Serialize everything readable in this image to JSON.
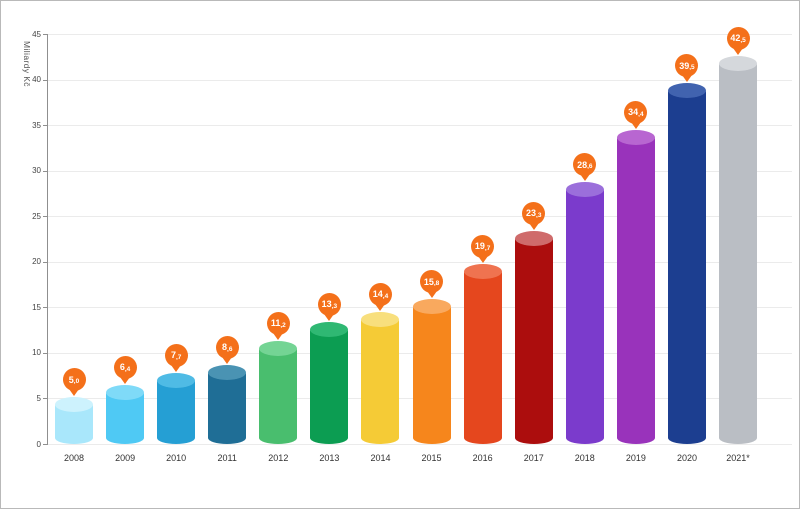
{
  "chart_data": {
    "type": "bar",
    "title": "",
    "ylabel": "Miliardy Kč",
    "xlabel": "",
    "ylim": [
      0,
      45
    ],
    "ytick_step": 5,
    "grid": true,
    "legend": "none",
    "categories": [
      "2008",
      "2009",
      "2010",
      "2011",
      "2012",
      "2013",
      "2014",
      "2015",
      "2016",
      "2017",
      "2018",
      "2019",
      "2020",
      "2021*"
    ],
    "values": [
      5.0,
      6.4,
      7.7,
      8.6,
      11.2,
      13.3,
      14.4,
      15.8,
      19.7,
      23.3,
      28.6,
      34.4,
      39.5,
      42.5
    ],
    "value_labels": [
      "5,0",
      "6,4",
      "7,7",
      "8,6",
      "11,2",
      "13,3",
      "14,4",
      "15,8",
      "19,7",
      "23,3",
      "28,6",
      "34,4",
      "39,5",
      "42,5"
    ],
    "bar_colors": [
      "#a9e7fb",
      "#4fc9f4",
      "#259fd4",
      "#1f6e96",
      "#49be6e",
      "#0c9d52",
      "#f5cb36",
      "#f6861c",
      "#e5471e",
      "#ac0d0d",
      "#7b3bcc",
      "#9933bb",
      "#1c3e90",
      "#babec4"
    ],
    "bar_top_colors": [
      "#cdf2fd",
      "#7fdaf8",
      "#4fbbe5",
      "#4a93b3",
      "#74d494",
      "#2fb873",
      "#f8df7d",
      "#f9a95e",
      "#ef7350",
      "#cf6b6b",
      "#9b6fdb",
      "#b866d1",
      "#4163af",
      "#d5d8dc"
    ],
    "label_balloon_color": "#f4701a",
    "label_text_color": "#ffffff"
  }
}
